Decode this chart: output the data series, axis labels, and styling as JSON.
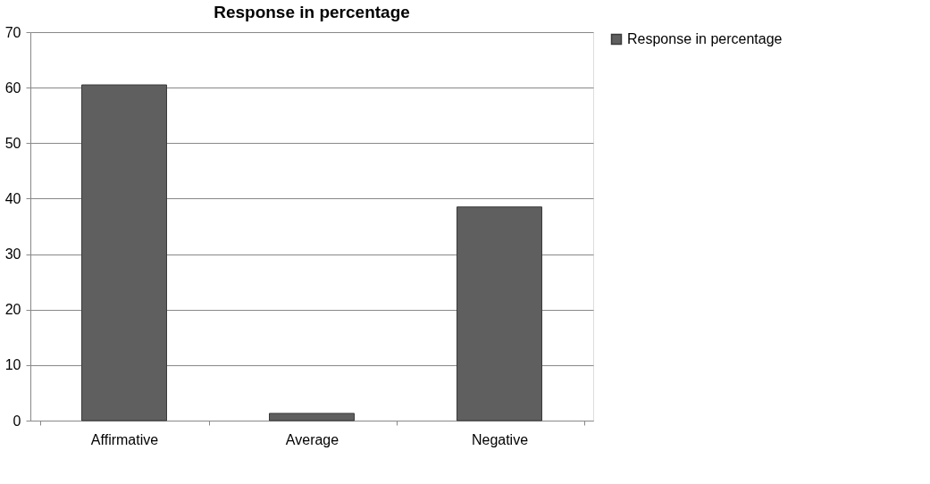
{
  "chart_data": {
    "type": "bar",
    "title": "Response in percentage",
    "categories": [
      "Affirmative",
      "Average",
      "Negative"
    ],
    "series": [
      {
        "name": "Response in percentage",
        "color": "#5f5f5f",
        "values": [
          60.5,
          1.3,
          38.5
        ]
      }
    ],
    "ylim": [
      0,
      70
    ],
    "yticks": [
      0,
      10,
      20,
      30,
      40,
      50,
      60,
      70
    ],
    "grid": "y",
    "legend": "right"
  }
}
